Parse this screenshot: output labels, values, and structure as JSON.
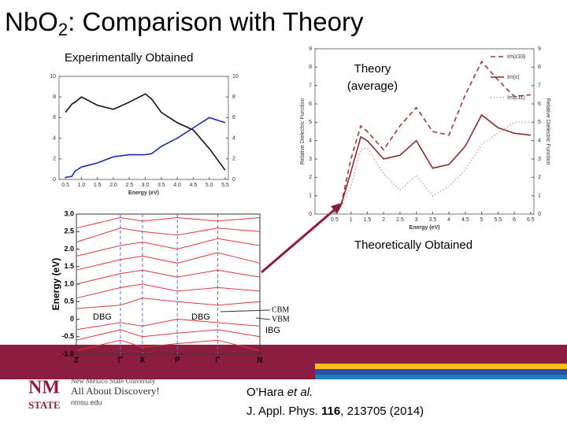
{
  "header": {
    "title": {
      "main": "NbO",
      "sub": "2",
      "rest": ": Comparison with Theory"
    }
  },
  "labels": {
    "experimental": "Experimentally Obtained",
    "theory": [
      "Theory",
      "(average)"
    ],
    "theoretical": "Theoretically Obtained",
    "dbg_1": "DBG",
    "dbg_2": "DBG",
    "ibg": "IBG",
    "cbm": "CBM",
    "vbm": "VBM"
  },
  "experiment_plot": {
    "type": "line",
    "x_label": "Energy (eV)",
    "xlim": [
      0.3,
      5.6
    ],
    "ylim": [
      0,
      10
    ],
    "xticks": [
      0.5,
      {
        "value": 1,
        "label": "1.0"
      },
      1.5,
      {
        "value": 2,
        "label": "2.0"
      },
      2.5,
      {
        "value": 3,
        "label": "3.0"
      },
      3.5,
      {
        "value": 4,
        "label": "4.0"
      },
      4.5,
      {
        "value": 5,
        "label": "5.0"
      },
      5.5
    ],
    "yticks": [
      0,
      2,
      4,
      6,
      8,
      10
    ],
    "y2ticks": [
      0,
      2,
      4,
      6,
      8,
      10
    ],
    "x": [
      0.5,
      0.7,
      0.8,
      1,
      1.5,
      2,
      2.5,
      3,
      3.2,
      3.5,
      4,
      4.5,
      5,
      5.5
    ],
    "series": [
      {
        "color": "#111111",
        "values": [
          6.5,
          7.3,
          7.5,
          8,
          7.2,
          6.8,
          7.5,
          8.3,
          7.8,
          6.5,
          5.5,
          4.8,
          3,
          0.9
        ]
      },
      {
        "color": "#1a2fb0",
        "values": [
          0.2,
          0.3,
          0.8,
          1.2,
          1.6,
          2.2,
          2.4,
          2.4,
          2.5,
          3.2,
          4,
          5,
          6,
          5.5
        ]
      }
    ]
  },
  "theory_plot": {
    "type": "line",
    "x_label": "Energy (eV)",
    "y_label": "Relative Dielectric Function",
    "xlim": [
      -0.1,
      6.6
    ],
    "ylim": [
      0,
      9
    ],
    "xticks": [
      0.5,
      1,
      1.5,
      2,
      2.5,
      3,
      3.5,
      4,
      4.5,
      5,
      5.5,
      6,
      6.5
    ],
    "yticks": [
      0,
      1,
      2,
      3,
      4,
      5,
      6,
      7,
      8,
      9
    ],
    "y2ticks": [
      0,
      1,
      2,
      3,
      4,
      5,
      6,
      7,
      8,
      9
    ],
    "x": [
      0.7,
      1,
      1.3,
      1.5,
      2,
      2.5,
      3,
      3.5,
      4,
      4.5,
      5,
      5.5,
      6,
      6.5
    ],
    "series": [
      {
        "name": "Im(ε33)",
        "color": "#9e3a3a",
        "dash": "6,4",
        "values": [
          0.5,
          3,
          4.8,
          4.5,
          3.5,
          4.8,
          5.8,
          4.5,
          4.3,
          6.5,
          8.3,
          7.3,
          6.4,
          6.5
        ]
      },
      {
        "name": "Im(ε)",
        "color": "#8b2a2a",
        "dash": "none",
        "values": [
          0.5,
          2.3,
          4.2,
          4,
          3,
          3.2,
          4,
          2.5,
          2.7,
          3.7,
          5.4,
          4.7,
          4.4,
          4.3
        ]
      },
      {
        "name": "Im(ε11)",
        "color": "#c98080",
        "dash": "1,3",
        "values": [
          0.5,
          1.5,
          3.5,
          3.6,
          2.2,
          1.3,
          2.1,
          1,
          1.5,
          2.4,
          3.8,
          4.4,
          5,
          5
        ]
      }
    ]
  },
  "band_plot": {
    "type": "band",
    "y_label": "Energy (eV)",
    "categories": [
      "Z",
      "Γ",
      "X",
      "P",
      "Γ",
      "N"
    ],
    "ylim": [
      -1,
      3
    ],
    "yticks": [
      {
        "value": 3,
        "label": "3.0"
      },
      2.5,
      {
        "value": 2,
        "label": "2.0"
      },
      1.5,
      {
        "value": 1,
        "label": "1.0"
      },
      0.5,
      0,
      -0.5,
      {
        "value": -1,
        "label": "-1.0"
      }
    ],
    "color": "#d93a3a",
    "bands": [
      {
        "values": [
          -0.9,
          -0.6,
          -0.8,
          -0.7,
          -0.6,
          -0.9
        ]
      },
      {
        "values": [
          -0.6,
          -0.3,
          -0.5,
          -0.4,
          -0.3,
          -0.5
        ]
      },
      {
        "values": [
          -0.3,
          -0.1,
          -0.2,
          0,
          -0.1,
          -0.2
        ]
      },
      {
        "values": [
          0.3,
          0.4,
          0.6,
          0.5,
          0.4,
          0.5
        ]
      },
      {
        "values": [
          0.6,
          0.9,
          1,
          0.8,
          0.9,
          0.8
        ]
      },
      {
        "values": [
          1,
          1.3,
          1.4,
          1.2,
          1.4,
          1.2
        ]
      },
      {
        "values": [
          1.4,
          1.7,
          1.8,
          1.6,
          1.9,
          1.6
        ]
      },
      {
        "values": [
          1.8,
          2.1,
          2.2,
          2,
          2.3,
          2.1
        ]
      },
      {
        "values": [
          2.2,
          2.6,
          2.5,
          2.4,
          2.6,
          2.5
        ]
      },
      {
        "values": [
          2.6,
          2.9,
          2.8,
          2.9,
          2.8,
          2.9
        ]
      }
    ]
  },
  "citation": {
    "author": "O’Hara ",
    "etal": "et al.",
    "journal": "J. Appl. Phys. ",
    "volume": "116",
    "details": ", 213705 (2014)"
  },
  "footer": {
    "logo": [
      "NM",
      "STATE"
    ],
    "university": "New Mexico State University",
    "slogan": "All About Discovery!",
    "url": "nmsu.edu"
  }
}
